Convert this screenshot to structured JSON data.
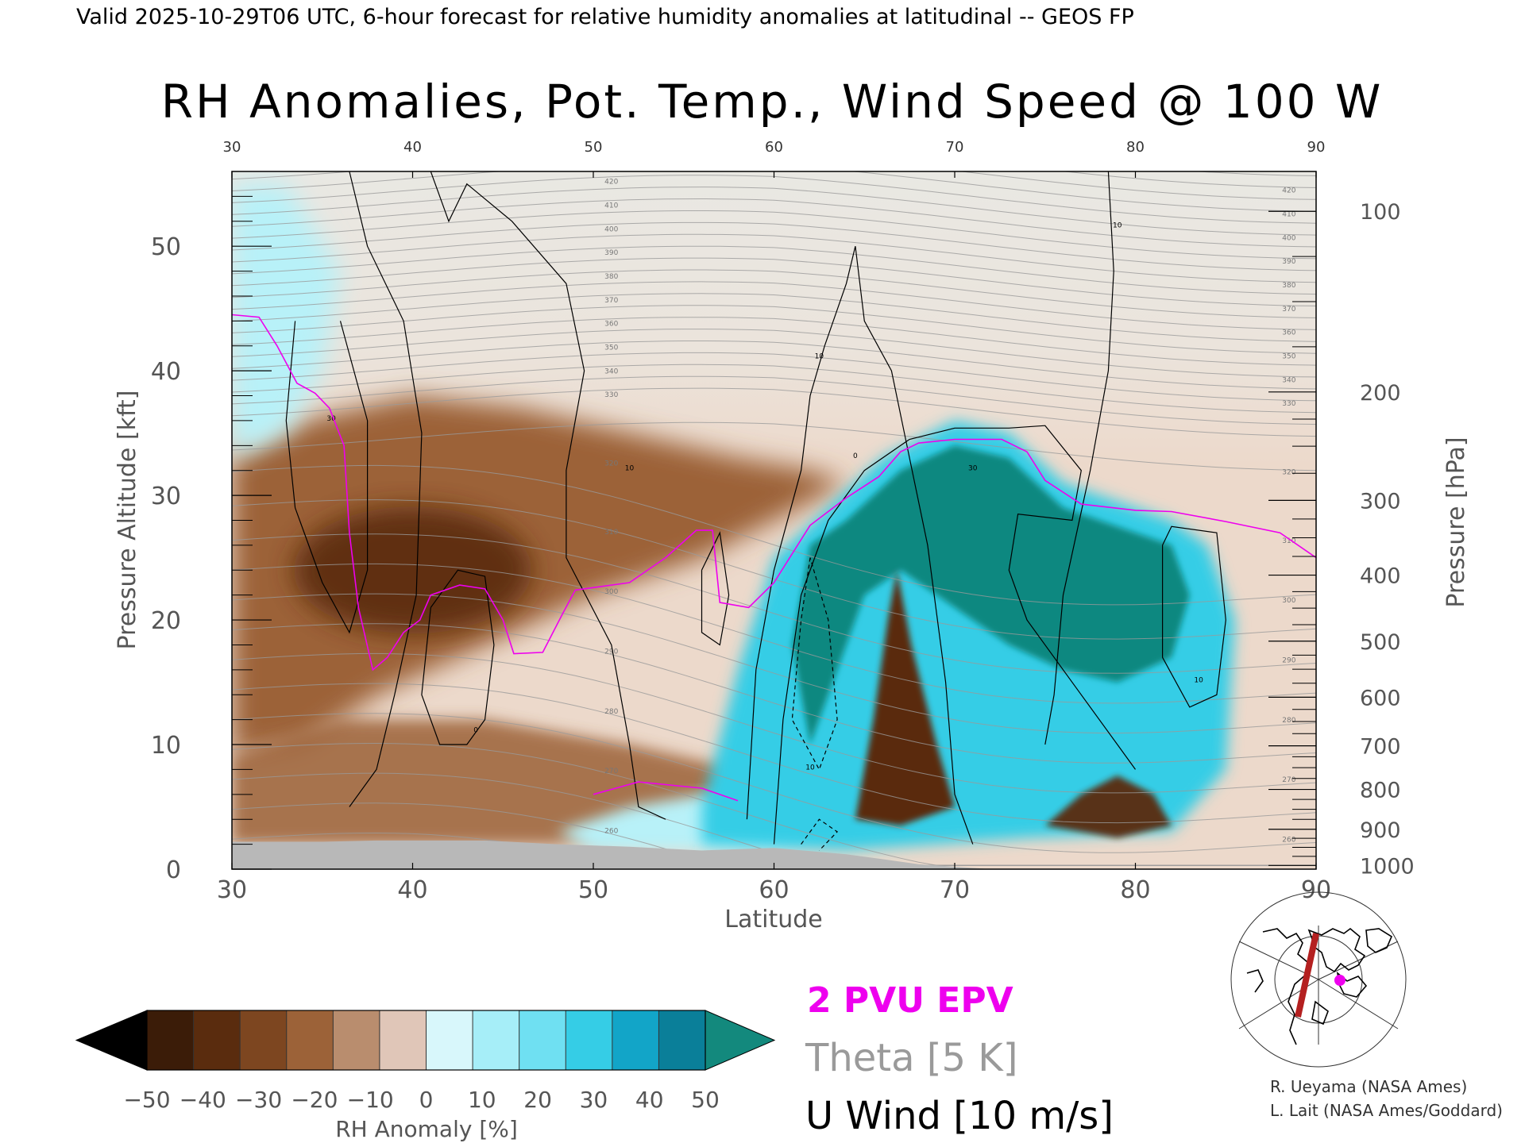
{
  "figure": {
    "suptitle": "Valid 2025-10-29T06 UTC, 6-hour forecast for relative humidity anomalies at latitudinal -- GEOS FP",
    "title": "RH Anomalies, Pot. Temp., Wind Speed @ 100 W"
  },
  "colors": {
    "dry_strong": "#5a2c0e",
    "dry_mid": "#9c6238",
    "dry_weak": "#e9d4c7",
    "neutral": "#ecebe5",
    "moist_weak": "#b8f1f8",
    "moist_mid": "#35cde6",
    "moist_strong": "#168a9a",
    "saturated": "#108880",
    "theta": "#9a9a9a",
    "pv": "#ee00ee",
    "wind": "#000000",
    "terrain": "#b8b8b8"
  },
  "chart_data": {
    "type": "heatmap",
    "title": "RH Anomalies, Pot. Temp., Wind Speed @ 100 W",
    "xlabel": "Latitude",
    "ylabel": "Pressure Altitude [kft]",
    "y2label": "Pressure [hPa]",
    "xlim": [
      30,
      90
    ],
    "ylim": [
      0,
      56
    ],
    "x_ticks": [
      "30",
      "40",
      "50",
      "60",
      "70",
      "80",
      "90"
    ],
    "x_ticks_top": [
      "30",
      "40",
      "50",
      "60",
      "70",
      "80",
      "90"
    ],
    "y_ticks": [
      "0",
      "10",
      "20",
      "30",
      "40",
      "50"
    ],
    "pressure_ticks": [
      {
        "label": "100",
        "kft": 52.8
      },
      {
        "label": "200",
        "kft": 38.3
      },
      {
        "label": "300",
        "kft": 29.6
      },
      {
        "label": "400",
        "kft": 23.6
      },
      {
        "label": "500",
        "kft": 18.3
      },
      {
        "label": "600",
        "kft": 13.8
      },
      {
        "label": "700",
        "kft": 9.9
      },
      {
        "label": "800",
        "kft": 6.4
      },
      {
        "label": "900",
        "kft": 3.2
      },
      {
        "label": "1000",
        "kft": 0.3
      }
    ],
    "colorbar": {
      "label": "RH Anomaly [%]",
      "levels": [
        -50,
        -40,
        -30,
        -20,
        -10,
        0,
        10,
        20,
        30,
        40,
        50
      ],
      "tick_labels": [
        "−50",
        "−40",
        "−30",
        "−20",
        "−10",
        "0",
        "10",
        "20",
        "30",
        "40",
        "50"
      ],
      "colors": [
        "#3b1c08",
        "#5a2c0e",
        "#7d4620",
        "#9c6238",
        "#b98d6e",
        "#e0c6b8",
        "#d8f7fb",
        "#a6eef8",
        "#6fe0f2",
        "#35cde6",
        "#12a5c8",
        "#0a7f99"
      ],
      "under_color": "#000000",
      "over_color": "#13897d"
    },
    "theta_contour_labels": [
      "260",
      "270",
      "280",
      "290",
      "300",
      "310",
      "320",
      "330",
      "340",
      "350",
      "360",
      "370",
      "380",
      "390",
      "400",
      "410",
      "420"
    ],
    "wind_contour_labels": [
      "0",
      "10",
      "30"
    ],
    "regions": [
      {
        "name": "dry-upper-left",
        "points": [
          [
            30,
            33
          ],
          [
            34,
            36
          ],
          [
            40,
            38
          ],
          [
            46,
            37
          ],
          [
            52,
            35
          ],
          [
            58,
            33
          ],
          [
            62,
            32
          ],
          [
            64,
            31
          ],
          [
            60,
            28
          ],
          [
            56,
            25
          ],
          [
            50,
            22
          ],
          [
            44,
            18
          ],
          [
            38,
            14
          ],
          [
            34,
            10
          ],
          [
            30,
            9
          ]
        ]
      },
      {
        "name": "dry-lower",
        "points": [
          [
            30,
            9
          ],
          [
            36,
            12
          ],
          [
            44,
            12
          ],
          [
            52,
            10
          ],
          [
            58,
            8
          ],
          [
            60,
            6
          ],
          [
            56,
            4
          ],
          [
            48,
            2
          ],
          [
            40,
            2
          ],
          [
            30,
            2
          ]
        ]
      },
      {
        "name": "dry-tongue-66N",
        "points": [
          [
            64.5,
            4
          ],
          [
            65.5,
            12
          ],
          [
            66.3,
            20
          ],
          [
            66.8,
            24
          ],
          [
            67.6,
            18
          ],
          [
            69,
            10
          ],
          [
            70,
            5
          ],
          [
            67,
            3.5
          ]
        ]
      },
      {
        "name": "dry-patch-79N",
        "points": [
          [
            75,
            3.5
          ],
          [
            77,
            6
          ],
          [
            79,
            7.5
          ],
          [
            81,
            6
          ],
          [
            82,
            3.5
          ],
          [
            79,
            2.5
          ]
        ]
      },
      {
        "name": "moist-dome",
        "points": [
          [
            56,
            5
          ],
          [
            58,
            16
          ],
          [
            60,
            25
          ],
          [
            63,
            29
          ],
          [
            66,
            33
          ],
          [
            70,
            36
          ],
          [
            73,
            35
          ],
          [
            76,
            31
          ],
          [
            82,
            28
          ],
          [
            84,
            26
          ],
          [
            85.5,
            20
          ],
          [
            85,
            8
          ],
          [
            82,
            3
          ],
          [
            74,
            2.5
          ],
          [
            64,
            1.5
          ],
          [
            56,
            2
          ]
        ]
      },
      {
        "name": "moist-lower-belt",
        "points": [
          [
            48,
            3
          ],
          [
            52,
            5
          ],
          [
            56,
            6
          ],
          [
            60,
            5
          ],
          [
            64,
            3
          ],
          [
            60,
            1.5
          ],
          [
            50,
            1.5
          ]
        ]
      },
      {
        "name": "moist-upper-left",
        "points": [
          [
            30,
            55
          ],
          [
            33,
            55
          ],
          [
            36,
            48
          ],
          [
            35,
            40
          ],
          [
            33,
            35
          ],
          [
            30,
            33
          ]
        ]
      },
      {
        "name": "saturated-core",
        "points": [
          [
            62,
            26
          ],
          [
            64,
            28
          ],
          [
            67,
            32
          ],
          [
            70,
            34
          ],
          [
            73,
            33
          ],
          [
            76,
            29
          ],
          [
            80,
            27
          ],
          [
            82,
            26
          ],
          [
            83,
            22
          ],
          [
            82,
            17
          ],
          [
            79,
            15
          ],
          [
            76,
            16
          ],
          [
            73,
            18
          ],
          [
            70,
            21
          ],
          [
            67,
            24
          ],
          [
            65,
            22
          ],
          [
            63,
            14
          ],
          [
            62,
            10
          ],
          [
            61,
            18
          ]
        ]
      }
    ],
    "series": [
      {
        "name": "2 PVU EPV",
        "values": [
          [
            30,
            44.5
          ],
          [
            31.5,
            44.3
          ],
          [
            32.5,
            42
          ],
          [
            33.6,
            39
          ],
          [
            34.6,
            38.2
          ],
          [
            35.4,
            37
          ],
          [
            36.2,
            34
          ],
          [
            36.5,
            27
          ],
          [
            37,
            21
          ],
          [
            37.8,
            16
          ],
          [
            38.6,
            17
          ],
          [
            39.5,
            19
          ],
          [
            40.4,
            20
          ],
          [
            41,
            22
          ],
          [
            42.6,
            22.8
          ],
          [
            44,
            22.5
          ],
          [
            45,
            20
          ],
          [
            45.6,
            17.3
          ],
          [
            47.2,
            17.4
          ],
          [
            48.3,
            20.5
          ],
          [
            49,
            22.4
          ],
          [
            52,
            23
          ],
          [
            54,
            25
          ],
          [
            55.7,
            27.2
          ],
          [
            56.6,
            27.2
          ],
          [
            57,
            21.4
          ],
          [
            58.6,
            21
          ],
          [
            60,
            23
          ],
          [
            62,
            27.6
          ],
          [
            64,
            29.8
          ],
          [
            65.8,
            31.5
          ],
          [
            67,
            33.5
          ],
          [
            68,
            34.2
          ],
          [
            70,
            34.5
          ],
          [
            72.6,
            34.5
          ],
          [
            74,
            33.5
          ],
          [
            75,
            31.2
          ],
          [
            77,
            29.3
          ],
          [
            80,
            28.8
          ],
          [
            82,
            28.7
          ],
          [
            85,
            27.9
          ],
          [
            88,
            27
          ],
          [
            90,
            25
          ]
        ]
      },
      {
        "name": "Theta [5 K]",
        "values": []
      },
      {
        "name": "U Wind [10 m/s]",
        "values": []
      }
    ]
  },
  "legend": {
    "pv": "2 PVU EPV",
    "theta": "Theta [5 K]",
    "wind": "U Wind [10 m/s]"
  },
  "credits": {
    "line1": "R. Ueyama (NASA Ames)",
    "line2": "L. Lait (NASA Ames/Goddard)"
  }
}
